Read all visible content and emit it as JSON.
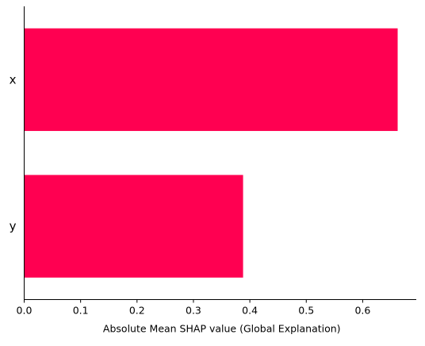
{
  "chart_data": {
    "type": "bar",
    "orientation": "horizontal",
    "categories": [
      "x",
      "y"
    ],
    "values": [
      0.662,
      0.388
    ],
    "title": "",
    "xlabel": "Absolute Mean SHAP value (Global Explanation)",
    "ylabel": "",
    "xlim": [
      0,
      0.695
    ],
    "xticks": [
      0.0,
      0.1,
      0.2,
      0.3,
      0.4,
      0.5,
      0.6
    ],
    "xtick_labels": [
      "0.0",
      "0.1",
      "0.2",
      "0.3",
      "0.4",
      "0.5",
      "0.6"
    ],
    "grid": false,
    "legend": "none",
    "bar_color": "#ff0051"
  }
}
